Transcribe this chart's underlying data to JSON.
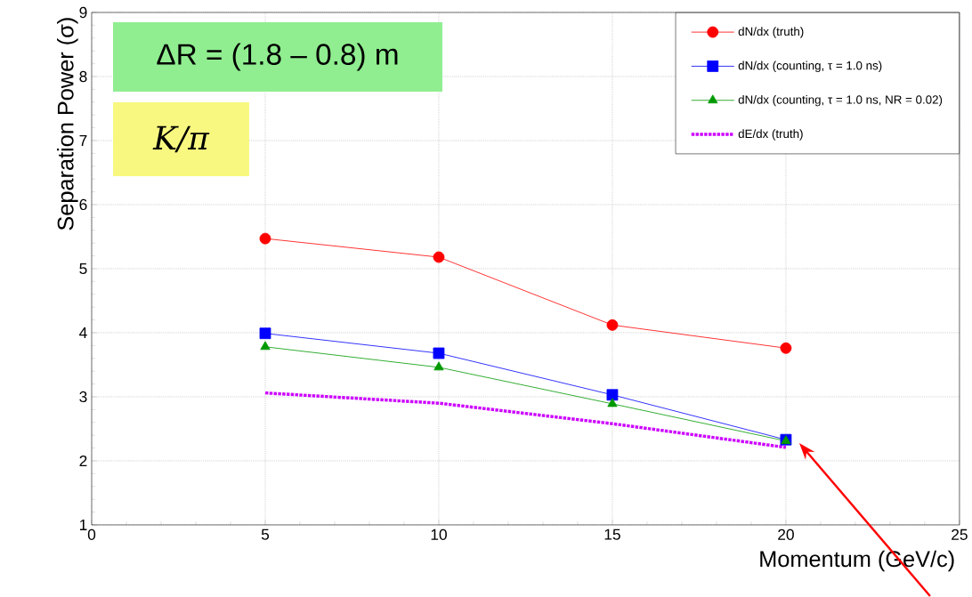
{
  "chart_data": {
    "type": "line",
    "xlabel": "Momentum (GeV/c)",
    "ylabel": "Separation Power (σ)",
    "x": [
      5,
      10,
      15,
      20
    ],
    "xlim": [
      0,
      25
    ],
    "xticks": [
      0,
      5,
      10,
      15,
      20,
      25
    ],
    "ylim": [
      1,
      9
    ],
    "yticks": [
      1,
      2,
      3,
      4,
      5,
      6,
      7,
      8,
      9
    ],
    "grid": true,
    "legend": "top right",
    "annotations": [
      "ΔR = (1.8 – 0.8) m",
      "K/π"
    ],
    "series": [
      {
        "name": "dN/dx (truth)",
        "color": "#ff0000",
        "marker": "circle",
        "line_style": "solid",
        "values": [
          5.47,
          5.18,
          4.12,
          3.76
        ]
      },
      {
        "name": "dN/dx (counting, τ = 1.0 ns)",
        "color": "#0000ff",
        "marker": "square",
        "line_style": "solid",
        "values": [
          3.99,
          3.68,
          3.03,
          2.33
        ]
      },
      {
        "name": "dN/dx (counting, τ = 1.0 ns, NR = 0.02)",
        "color": "#009900",
        "marker": "triangle",
        "line_style": "solid",
        "values": [
          3.78,
          3.46,
          2.89,
          2.31
        ]
      },
      {
        "name": "dE/dx (truth)",
        "color": "#cc00ff",
        "marker": "none",
        "line_style": "dotted",
        "values": [
          3.06,
          2.9,
          2.58,
          2.21
        ]
      }
    ]
  }
}
